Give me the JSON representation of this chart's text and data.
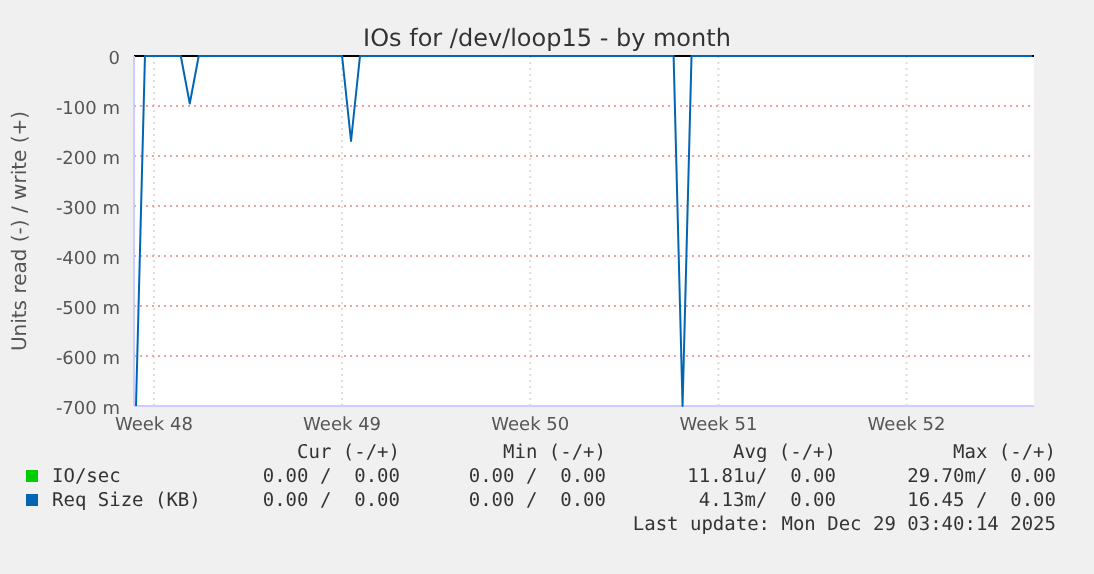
{
  "chart_data": {
    "type": "line",
    "title": "IOs for /dev/loop15 - by month",
    "ylabel": "Units read (-) / write (+)",
    "categories": [
      null,
      null,
      "Week 48",
      null,
      null,
      null,
      null,
      null,
      null,
      null,
      null,
      null,
      null,
      null,
      null,
      null,
      null,
      null,
      null,
      null,
      null,
      null,
      null,
      "Week 49",
      null,
      null,
      null,
      null,
      null,
      null,
      null,
      null,
      null,
      null,
      null,
      null,
      null,
      null,
      null,
      null,
      null,
      null,
      null,
      null,
      "Week 50",
      null,
      null,
      null,
      null,
      null,
      null,
      null,
      null,
      null,
      null,
      null,
      null,
      null,
      null,
      null,
      null,
      null,
      null,
      null,
      null,
      "Week 51",
      null,
      null,
      null,
      null,
      null,
      null,
      null,
      null,
      null,
      null,
      null,
      null,
      null,
      null,
      null,
      null,
      null,
      null,
      null,
      null,
      "Week 52",
      null,
      null,
      null,
      null,
      null,
      null,
      null,
      null,
      null,
      null,
      null,
      null,
      null,
      null
    ],
    "ylim": [
      -700,
      0
    ],
    "yticks": [
      {
        "value": 0,
        "label": "0"
      },
      {
        "value": -100,
        "label": "-100 m"
      },
      {
        "value": -200,
        "label": "-200 m"
      },
      {
        "value": -300,
        "label": "-300 m"
      },
      {
        "value": -400,
        "label": "-400 m"
      },
      {
        "value": -500,
        "label": "-500 m"
      },
      {
        "value": -600,
        "label": "-600 m"
      },
      {
        "value": -700,
        "label": "-700 m"
      }
    ],
    "grid": true,
    "legend": "bottom",
    "line_style": "solid",
    "series": [
      {
        "name": "IO/sec",
        "color": "#00cc00",
        "values": [
          null,
          null,
          null,
          null,
          null,
          null,
          null,
          null,
          null,
          null,
          null,
          null,
          null,
          null,
          null,
          null,
          null,
          null,
          null,
          null,
          null,
          null,
          null,
          null,
          null,
          null,
          null,
          null,
          null,
          null,
          null,
          null,
          null,
          null,
          null,
          null,
          null,
          null,
          null,
          null,
          null,
          null,
          null,
          null,
          null,
          null,
          null,
          null,
          null,
          null,
          null,
          null,
          null,
          null,
          null,
          null,
          null,
          null,
          null,
          null,
          null,
          null,
          null,
          null,
          null,
          null,
          null,
          null,
          null,
          null,
          null,
          null,
          null,
          null,
          null,
          null,
          null,
          null,
          null,
          null,
          null,
          null,
          null,
          null,
          null,
          null,
          null,
          null,
          null,
          null,
          null,
          null,
          null,
          null,
          null,
          null,
          null,
          null,
          null,
          null,
          null
        ]
      },
      {
        "name": "Req Size (KB)",
        "color": "#0066b3",
        "values": [
          -700,
          0,
          0,
          0,
          0,
          0,
          -95,
          0,
          0,
          0,
          0,
          0,
          0,
          0,
          0,
          0,
          0,
          0,
          0,
          0,
          0,
          0,
          0,
          0,
          -170,
          0,
          0,
          0,
          0,
          0,
          0,
          0,
          0,
          0,
          0,
          0,
          0,
          0,
          0,
          0,
          0,
          0,
          0,
          0,
          0,
          0,
          0,
          0,
          0,
          0,
          0,
          0,
          0,
          0,
          0,
          0,
          0,
          0,
          0,
          0,
          0,
          -700,
          0,
          0,
          0,
          0,
          0,
          0,
          0,
          0,
          0,
          0,
          0,
          0,
          0,
          0,
          0,
          0,
          0,
          0,
          0,
          0,
          0,
          0,
          0,
          0,
          0,
          0,
          0,
          0,
          0,
          0,
          0,
          0,
          0,
          0,
          0,
          0,
          0,
          0,
          0
        ]
      }
    ],
    "annotations": [
      "Cur (-/+)",
      "Min (-/+)",
      "Avg (-/+)",
      "Max (-/+)",
      "0.00 /  0.00",
      "0.00 /  0.00",
      "11.81u/  0.00",
      "29.70m/  0.00",
      "0.00 /  0.00",
      "0.00 /  0.00",
      "4.13m/  0.00",
      "16.45 /  0.00",
      "Last update: Mon Dec 29 03:40:14 2025"
    ]
  }
}
